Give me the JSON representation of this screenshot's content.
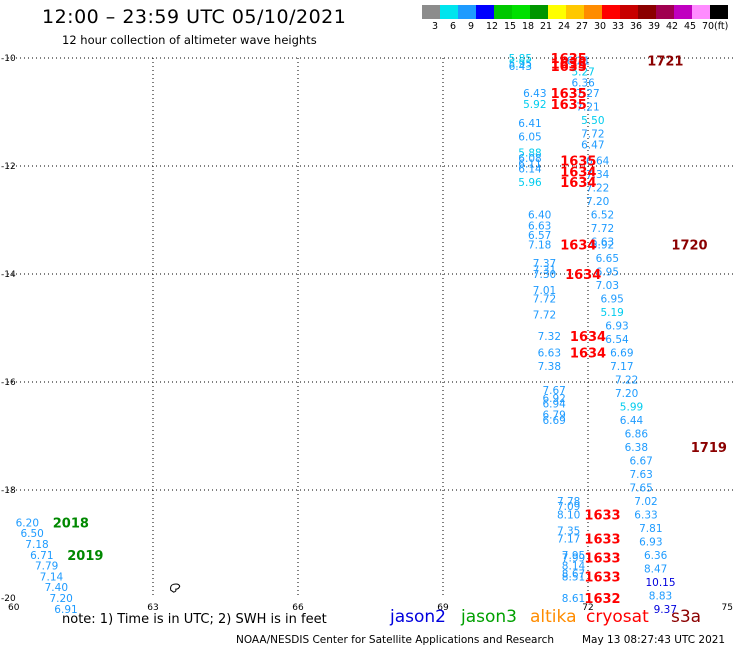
{
  "header": {
    "title": "12:00 – 23:59 UTC 05/10/2021",
    "subtitle": "12 hour collection of altimeter wave heights"
  },
  "legend": {
    "colors": [
      "#8c8c8c",
      "#00e5ee",
      "#1e9bff",
      "#0000ff",
      "#00c800",
      "#00e000",
      "#009600",
      "#ffff00",
      "#ffc800",
      "#ff8c00",
      "#ff0000",
      "#c80000",
      "#8b0000",
      "#a00050",
      "#c000c0",
      "#ff8cff",
      "#000000"
    ],
    "ticks": [
      "3",
      "6",
      "9",
      "12",
      "15",
      "18",
      "21",
      "24",
      "27",
      "30",
      "33",
      "36",
      "39",
      "42",
      "45",
      "70",
      "(ft)"
    ]
  },
  "note": "note:  1) Time is in UTC;  2) SWH is in feet",
  "satellites": [
    {
      "name": "jason2",
      "color": "#0000dd"
    },
    {
      "name": "jason3",
      "color": "#00a000"
    },
    {
      "name": "altika",
      "color": "#ff8c00"
    },
    {
      "name": "cryosat",
      "color": "#ff0000"
    },
    {
      "name": "s3a",
      "color": "#8b0000"
    }
  ],
  "footer": {
    "credit": "NOAA/NESDIS Center for Satellite Applications and Research",
    "date": "May 13 08:27:43 UTC 2021"
  },
  "chart_data": {
    "type": "scatter",
    "xlim": [
      60,
      75
    ],
    "ylim": [
      -20,
      -10
    ],
    "x_ticks": [
      "60",
      "63",
      "66",
      "69",
      "72",
      "75"
    ],
    "y_ticks": [
      "-10",
      "-12",
      "-14",
      "-16",
      "-18",
      "-20"
    ],
    "grid": true,
    "swh_points": [
      {
        "x": 70.6,
        "y": -10.0,
        "v": "5.85",
        "c": "#00ccee"
      },
      {
        "x": 70.6,
        "y": -10.1,
        "v": "5.95",
        "c": "#00ccee"
      },
      {
        "x": 70.6,
        "y": -10.15,
        "v": "6.43",
        "c": "#1e9bff"
      },
      {
        "x": 71.8,
        "y": -10.05,
        "v": "6.21",
        "c": "#1e9bff"
      },
      {
        "x": 71.9,
        "y": -10.25,
        "v": "5.27",
        "c": "#00ccee"
      },
      {
        "x": 71.9,
        "y": -10.45,
        "v": "6.36",
        "c": "#1e9bff"
      },
      {
        "x": 70.9,
        "y": -10.65,
        "v": "6.43",
        "c": "#1e9bff"
      },
      {
        "x": 70.9,
        "y": -10.85,
        "v": "5.92",
        "c": "#00ccee"
      },
      {
        "x": 72.0,
        "y": -10.65,
        "v": "7.27",
        "c": "#1e9bff"
      },
      {
        "x": 72.0,
        "y": -10.9,
        "v": "7.21",
        "c": "#1e9bff"
      },
      {
        "x": 72.1,
        "y": -11.15,
        "v": "5.50",
        "c": "#00ccee"
      },
      {
        "x": 70.8,
        "y": -11.2,
        "v": "6.41",
        "c": "#1e9bff"
      },
      {
        "x": 70.8,
        "y": -11.45,
        "v": "6.05",
        "c": "#1e9bff"
      },
      {
        "x": 72.1,
        "y": -11.4,
        "v": "7.72",
        "c": "#1e9bff"
      },
      {
        "x": 72.1,
        "y": -11.6,
        "v": "6.47",
        "c": "#1e9bff"
      },
      {
        "x": 70.8,
        "y": -11.75,
        "v": "5.88",
        "c": "#00ccee"
      },
      {
        "x": 70.8,
        "y": -11.85,
        "v": "6.08",
        "c": "#1e9bff"
      },
      {
        "x": 70.8,
        "y": -11.95,
        "v": "6.11",
        "c": "#1e9bff"
      },
      {
        "x": 70.8,
        "y": -12.05,
        "v": "6.14",
        "c": "#1e9bff"
      },
      {
        "x": 70.8,
        "y": -12.3,
        "v": "5.96",
        "c": "#00ccee"
      },
      {
        "x": 72.2,
        "y": -11.9,
        "v": "6.64",
        "c": "#1e9bff"
      },
      {
        "x": 72.2,
        "y": -12.15,
        "v": "7.34",
        "c": "#1e9bff"
      },
      {
        "x": 72.2,
        "y": -12.4,
        "v": "7.22",
        "c": "#1e9bff"
      },
      {
        "x": 72.2,
        "y": -12.65,
        "v": "7.20",
        "c": "#1e9bff"
      },
      {
        "x": 72.3,
        "y": -12.9,
        "v": "6.52",
        "c": "#1e9bff"
      },
      {
        "x": 72.3,
        "y": -13.15,
        "v": "7.72",
        "c": "#1e9bff"
      },
      {
        "x": 72.3,
        "y": -13.4,
        "v": "6.63",
        "c": "#1e9bff"
      },
      {
        "x": 72.3,
        "y": -13.45,
        "v": "6.92",
        "c": "#1e9bff"
      },
      {
        "x": 71.0,
        "y": -12.9,
        "v": "6.40",
        "c": "#1e9bff"
      },
      {
        "x": 71.0,
        "y": -13.1,
        "v": "6.63",
        "c": "#1e9bff"
      },
      {
        "x": 71.0,
        "y": -13.28,
        "v": "6.57",
        "c": "#1e9bff"
      },
      {
        "x": 71.0,
        "y": -13.45,
        "v": "7.18",
        "c": "#1e9bff"
      },
      {
        "x": 72.4,
        "y": -13.7,
        "v": "6.65",
        "c": "#1e9bff"
      },
      {
        "x": 72.4,
        "y": -13.95,
        "v": "6.95",
        "c": "#1e9bff"
      },
      {
        "x": 72.4,
        "y": -14.2,
        "v": "7.03",
        "c": "#1e9bff"
      },
      {
        "x": 71.1,
        "y": -13.8,
        "v": "7.37",
        "c": "#1e9bff"
      },
      {
        "x": 71.1,
        "y": -13.92,
        "v": "7.31",
        "c": "#1e9bff"
      },
      {
        "x": 71.1,
        "y": -14.0,
        "v": "7.30",
        "c": "#1e9bff"
      },
      {
        "x": 71.1,
        "y": -14.3,
        "v": "7.01",
        "c": "#1e9bff"
      },
      {
        "x": 71.1,
        "y": -14.45,
        "v": "7.72",
        "c": "#1e9bff"
      },
      {
        "x": 71.1,
        "y": -14.75,
        "v": "7.72",
        "c": "#1e9bff"
      },
      {
        "x": 72.5,
        "y": -14.45,
        "v": "6.95",
        "c": "#1e9bff"
      },
      {
        "x": 72.5,
        "y": -14.7,
        "v": "5.19",
        "c": "#00ccee"
      },
      {
        "x": 72.6,
        "y": -14.95,
        "v": "6.93",
        "c": "#1e9bff"
      },
      {
        "x": 72.6,
        "y": -15.2,
        "v": "6.54",
        "c": "#1e9bff"
      },
      {
        "x": 72.7,
        "y": -15.45,
        "v": "6.69",
        "c": "#1e9bff"
      },
      {
        "x": 71.2,
        "y": -15.15,
        "v": "7.32",
        "c": "#1e9bff"
      },
      {
        "x": 71.2,
        "y": -15.45,
        "v": "6.63",
        "c": "#1e9bff"
      },
      {
        "x": 71.2,
        "y": -15.7,
        "v": "7.38",
        "c": "#1e9bff"
      },
      {
        "x": 72.7,
        "y": -15.7,
        "v": "7.17",
        "c": "#1e9bff"
      },
      {
        "x": 72.8,
        "y": -15.95,
        "v": "7.22",
        "c": "#1e9bff"
      },
      {
        "x": 72.8,
        "y": -16.2,
        "v": "7.20",
        "c": "#1e9bff"
      },
      {
        "x": 72.9,
        "y": -16.45,
        "v": "5.99",
        "c": "#00ccee"
      },
      {
        "x": 72.9,
        "y": -16.7,
        "v": "6.44",
        "c": "#1e9bff"
      },
      {
        "x": 71.3,
        "y": -16.15,
        "v": "7.67",
        "c": "#1e9bff"
      },
      {
        "x": 71.3,
        "y": -16.3,
        "v": "6.92",
        "c": "#1e9bff"
      },
      {
        "x": 71.3,
        "y": -16.4,
        "v": "6.94",
        "c": "#1e9bff"
      },
      {
        "x": 71.3,
        "y": -16.6,
        "v": "6.79",
        "c": "#1e9bff"
      },
      {
        "x": 71.3,
        "y": -16.7,
        "v": "6.69",
        "c": "#1e9bff"
      },
      {
        "x": 73.0,
        "y": -16.95,
        "v": "6.86",
        "c": "#1e9bff"
      },
      {
        "x": 73.0,
        "y": -17.2,
        "v": "6.38",
        "c": "#1e9bff"
      },
      {
        "x": 73.1,
        "y": -17.45,
        "v": "6.67",
        "c": "#1e9bff"
      },
      {
        "x": 73.1,
        "y": -17.7,
        "v": "7.63",
        "c": "#1e9bff"
      },
      {
        "x": 73.1,
        "y": -17.95,
        "v": "7.65",
        "c": "#1e9bff"
      },
      {
        "x": 73.2,
        "y": -18.2,
        "v": "7.02",
        "c": "#1e9bff"
      },
      {
        "x": 73.2,
        "y": -18.45,
        "v": "6.33",
        "c": "#1e9bff"
      },
      {
        "x": 73.3,
        "y": -18.7,
        "v": "7.81",
        "c": "#1e9bff"
      },
      {
        "x": 73.3,
        "y": -18.95,
        "v": "6.93",
        "c": "#1e9bff"
      },
      {
        "x": 73.4,
        "y": -19.2,
        "v": "6.36",
        "c": "#1e9bff"
      },
      {
        "x": 73.4,
        "y": -19.45,
        "v": "8.47",
        "c": "#1e9bff"
      },
      {
        "x": 73.5,
        "y": -19.7,
        "v": "10.15",
        "c": "#0000dd"
      },
      {
        "x": 73.5,
        "y": -19.95,
        "v": "8.83",
        "c": "#1e9bff"
      },
      {
        "x": 73.6,
        "y": -20.2,
        "v": "9.37",
        "c": "#0000dd"
      },
      {
        "x": 71.6,
        "y": -18.2,
        "v": "7.78",
        "c": "#1e9bff"
      },
      {
        "x": 71.6,
        "y": -18.3,
        "v": "7.09",
        "c": "#1e9bff"
      },
      {
        "x": 71.6,
        "y": -18.45,
        "v": "8.10",
        "c": "#1e9bff"
      },
      {
        "x": 71.6,
        "y": -18.75,
        "v": "7.35",
        "c": "#1e9bff"
      },
      {
        "x": 71.6,
        "y": -18.9,
        "v": "7.17",
        "c": "#1e9bff"
      },
      {
        "x": 71.7,
        "y": -19.2,
        "v": "7.95",
        "c": "#1e9bff"
      },
      {
        "x": 71.7,
        "y": -19.25,
        "v": "7.99",
        "c": "#1e9bff"
      },
      {
        "x": 71.7,
        "y": -19.4,
        "v": "8.14",
        "c": "#1e9bff"
      },
      {
        "x": 71.7,
        "y": -19.55,
        "v": "8.67",
        "c": "#1e9bff"
      },
      {
        "x": 71.7,
        "y": -19.6,
        "v": "8.51",
        "c": "#1e9bff"
      },
      {
        "x": 71.7,
        "y": -20.0,
        "v": "8.61",
        "c": "#1e9bff"
      },
      {
        "x": 60.4,
        "y": -18.6,
        "v": "6.20",
        "c": "#1e9bff"
      },
      {
        "x": 60.5,
        "y": -18.8,
        "v": "6.50",
        "c": "#1e9bff"
      },
      {
        "x": 60.6,
        "y": -19.0,
        "v": "7.18",
        "c": "#1e9bff"
      },
      {
        "x": 60.7,
        "y": -19.2,
        "v": "6.71",
        "c": "#1e9bff"
      },
      {
        "x": 60.8,
        "y": -19.4,
        "v": "7.79",
        "c": "#1e9bff"
      },
      {
        "x": 60.9,
        "y": -19.6,
        "v": "7.14",
        "c": "#1e9bff"
      },
      {
        "x": 61.0,
        "y": -19.8,
        "v": "7.40",
        "c": "#1e9bff"
      },
      {
        "x": 61.1,
        "y": -20.0,
        "v": "7.20",
        "c": "#1e9bff"
      },
      {
        "x": 61.2,
        "y": -20.2,
        "v": "6.91",
        "c": "#1e9bff"
      }
    ],
    "time_labels": [
      {
        "x": 71.6,
        "y": -10.0,
        "t": "1635",
        "c": "#ff0000"
      },
      {
        "x": 71.6,
        "y": -10.1,
        "t": "1635",
        "c": "#ff0000"
      },
      {
        "x": 71.6,
        "y": -10.15,
        "t": "1635",
        "c": "#ff0000"
      },
      {
        "x": 71.6,
        "y": -10.65,
        "t": "1635",
        "c": "#ff0000"
      },
      {
        "x": 71.6,
        "y": -10.85,
        "t": "1635",
        "c": "#ff0000"
      },
      {
        "x": 71.8,
        "y": -11.9,
        "t": "1635",
        "c": "#ff0000"
      },
      {
        "x": 71.8,
        "y": -12.1,
        "t": "1634",
        "c": "#ff0000"
      },
      {
        "x": 71.8,
        "y": -12.3,
        "t": "1634",
        "c": "#ff0000"
      },
      {
        "x": 71.8,
        "y": -13.45,
        "t": "1634",
        "c": "#ff0000"
      },
      {
        "x": 71.9,
        "y": -14.0,
        "t": "1634",
        "c": "#ff0000"
      },
      {
        "x": 72.0,
        "y": -15.15,
        "t": "1634",
        "c": "#ff0000"
      },
      {
        "x": 72.0,
        "y": -15.45,
        "t": "1634",
        "c": "#ff0000"
      },
      {
        "x": 72.3,
        "y": -18.45,
        "t": "1633",
        "c": "#ff0000"
      },
      {
        "x": 72.3,
        "y": -18.9,
        "t": "1633",
        "c": "#ff0000"
      },
      {
        "x": 72.3,
        "y": -19.25,
        "t": "1633",
        "c": "#ff0000"
      },
      {
        "x": 72.3,
        "y": -19.6,
        "t": "1633",
        "c": "#ff0000"
      },
      {
        "x": 72.3,
        "y": -20.0,
        "t": "1632",
        "c": "#ff0000"
      },
      {
        "x": 73.6,
        "y": -10.05,
        "t": "1721",
        "c": "#8b0000"
      },
      {
        "x": 74.1,
        "y": -13.45,
        "t": "1720",
        "c": "#8b0000"
      },
      {
        "x": 74.5,
        "y": -17.2,
        "t": "1719",
        "c": "#8b0000"
      },
      {
        "x": 61.3,
        "y": -18.6,
        "t": "2018",
        "c": "#008800"
      },
      {
        "x": 61.6,
        "y": -19.2,
        "t": "2019",
        "c": "#008800"
      }
    ],
    "land_marks": [
      {
        "x": 63.45,
        "y": -19.8,
        "name": "island-outline"
      }
    ]
  }
}
